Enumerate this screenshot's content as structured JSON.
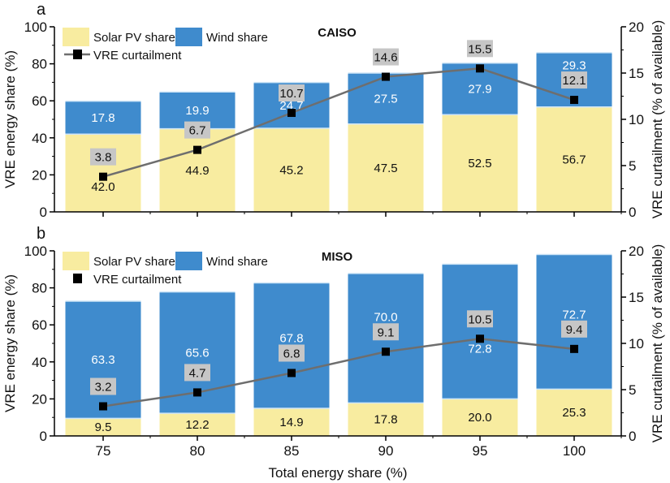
{
  "chart_data": [
    {
      "type": "bar",
      "panel_label": "a",
      "title": "CAISO",
      "xlabel": "",
      "ylabel": "VRE energy share (%)",
      "y2label": "VRE curtailment (% of available)",
      "categories": [
        "75",
        "80",
        "85",
        "90",
        "95",
        "100"
      ],
      "ylim": [
        0,
        100
      ],
      "yticks": [
        0,
        20,
        40,
        60,
        80,
        100
      ],
      "y2lim": [
        0,
        20
      ],
      "y2ticks": [
        0,
        5,
        10,
        15,
        20
      ],
      "stacked": true,
      "series": [
        {
          "name": "Solar PV share",
          "type": "bar",
          "color": "#f8eca0",
          "values": [
            42.0,
            44.9,
            45.2,
            47.5,
            52.5,
            56.7
          ]
        },
        {
          "name": "Wind share",
          "type": "bar",
          "color": "#3f8bcd",
          "values": [
            17.8,
            19.9,
            24.7,
            27.5,
            27.9,
            29.3
          ]
        },
        {
          "name": "VRE curtailment",
          "type": "line",
          "axis": "right",
          "color": "#6e6e6e",
          "values": [
            3.8,
            6.7,
            10.7,
            14.6,
            15.5,
            12.1
          ]
        }
      ],
      "legend_position": "top-left",
      "legend_line": true
    },
    {
      "type": "bar",
      "panel_label": "b",
      "title": "MISO",
      "xlabel": "Total energy share (%)",
      "ylabel": "VRE energy share (%)",
      "y2label": "VRE curtailment (% of available)",
      "categories": [
        "75",
        "80",
        "85",
        "90",
        "95",
        "100"
      ],
      "ylim": [
        0,
        100
      ],
      "yticks": [
        0,
        20,
        40,
        60,
        80,
        100
      ],
      "y2lim": [
        0,
        20
      ],
      "y2ticks": [
        0,
        5,
        10,
        15,
        20
      ],
      "stacked": true,
      "series": [
        {
          "name": "Solar PV share",
          "type": "bar",
          "color": "#f8eca0",
          "values": [
            9.5,
            12.2,
            14.9,
            17.8,
            20.0,
            25.3
          ]
        },
        {
          "name": "Wind share",
          "type": "bar",
          "color": "#3f8bcd",
          "values": [
            63.3,
            65.6,
            67.8,
            70.0,
            72.8,
            72.7
          ]
        },
        {
          "name": "VRE curtailment",
          "type": "line",
          "axis": "right",
          "color": "#6e6e6e",
          "values": [
            3.2,
            4.7,
            6.8,
            9.1,
            10.5,
            9.4
          ]
        }
      ],
      "legend_position": "top-left",
      "legend_line": false
    }
  ]
}
